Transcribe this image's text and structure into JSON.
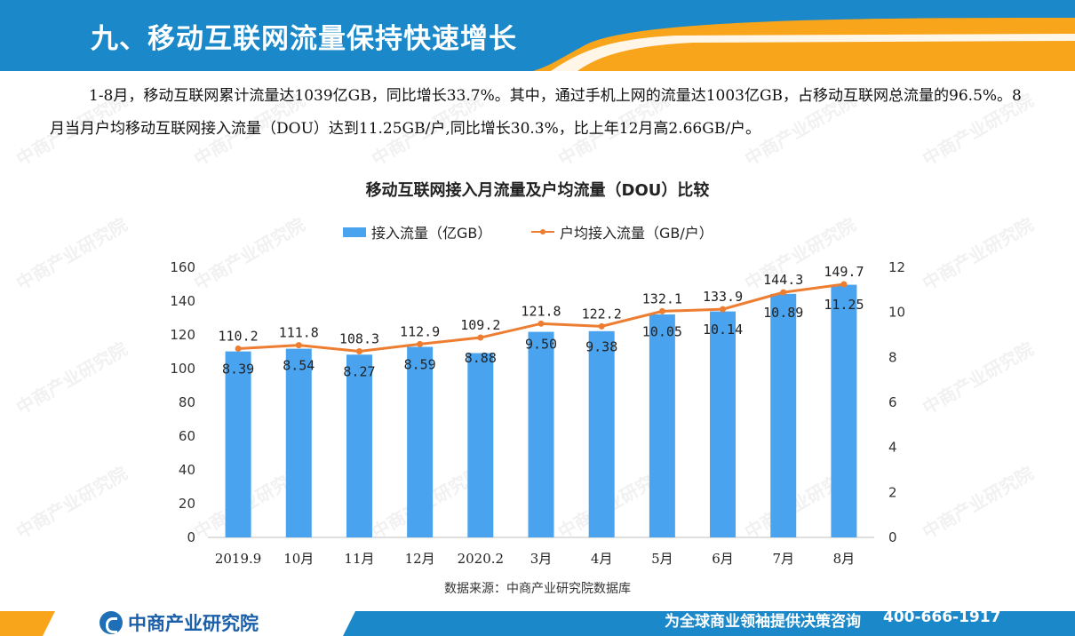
{
  "header": {
    "title": "九、移动互联网流量保持快速增长"
  },
  "paragraph": "1-8月，移动互联网累计流量达1039亿GB，同比增长33.7%。其中，通过手机上网的流量达1003亿GB，占移动互联网总流量的96.5%。8月当月户均移动互联网接入流量（DOU）达到11.25GB/户,同比增长30.3%，比上年12月高2.66GB/户。",
  "chart_data": {
    "type": "bar",
    "title": "移动互联网接入月流量及户均流量（DOU）比较",
    "categories": [
      "2019.9",
      "10月",
      "11月",
      "12月",
      "2020.2",
      "3月",
      "4月",
      "5月",
      "6月",
      "7月",
      "8月"
    ],
    "series": [
      {
        "name": "接入流量（亿GB）",
        "type": "bar",
        "axis": "left",
        "values": [
          110.2,
          111.8,
          108.3,
          112.9,
          109.2,
          121.8,
          122.2,
          132.1,
          133.9,
          144.3,
          149.7
        ],
        "labels": [
          "110.2",
          "111.8",
          "108.3",
          "112.9",
          "109.2",
          "121.8",
          "122.2",
          "132.1",
          "133.9",
          "144.3",
          "149.7"
        ],
        "color": "#4aa3ee"
      },
      {
        "name": "户均接入流量（GB/户）",
        "type": "line",
        "axis": "right",
        "values": [
          8.39,
          8.54,
          8.27,
          8.59,
          8.88,
          9.5,
          9.38,
          10.05,
          10.14,
          10.89,
          11.25
        ],
        "labels": [
          "8.39",
          "8.54",
          "8.27",
          "8.59",
          "8.88",
          "9.50",
          "9.38",
          "10.05",
          "10.14",
          "10.89",
          "11.25"
        ],
        "color": "#ed7d31"
      }
    ],
    "y_left": {
      "range": [
        0,
        160
      ],
      "ticks": [
        "0",
        "20",
        "40",
        "60",
        "80",
        "100",
        "120",
        "140",
        "160"
      ]
    },
    "y_right": {
      "range": [
        0,
        12
      ],
      "ticks": [
        "0",
        "2",
        "4",
        "6",
        "8",
        "10",
        "12"
      ]
    },
    "legend_position": "top",
    "grid": false
  },
  "source": "数据来源：中商产业研究院数据库",
  "footer": {
    "logo_text": "中商产业研究院",
    "slogan": "为全球商业领袖提供决策咨询",
    "phone": "400-666-1917"
  },
  "watermark": "中商产业研究院",
  "colors": {
    "header_blue": "#1a88c9",
    "header_orange": "#f8a51b",
    "bar": "#4aa3ee",
    "line": "#ed7d31"
  }
}
